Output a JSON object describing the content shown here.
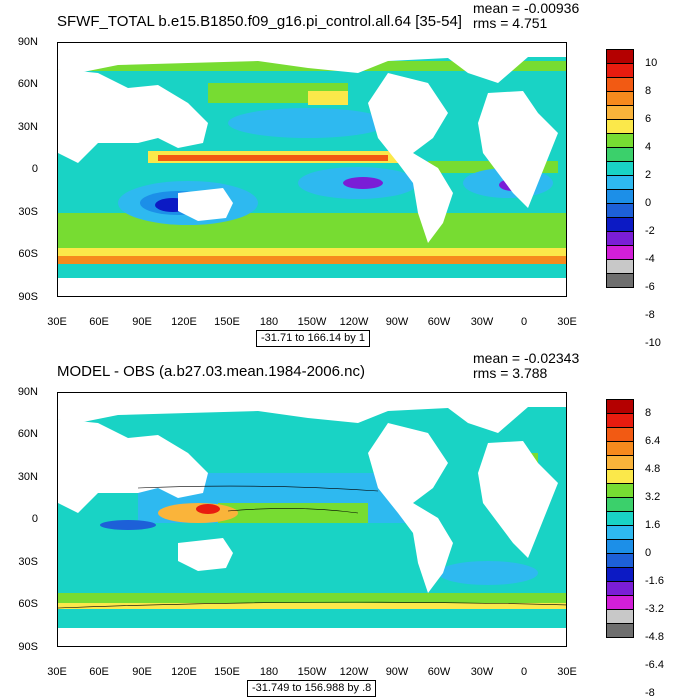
{
  "panels": [
    {
      "title": "SFWF_TOTAL b.e15.B1850.f09_g16.pi_control.all.64 [35-54]",
      "mean": "mean = -0.00936",
      "rms": "rms = 4.751",
      "range_label": "-31.71 to 166.14 by 1",
      "colorbar_labels": [
        "10",
        "8",
        "6",
        "4",
        "2",
        "0",
        "-2",
        "-4",
        "-6",
        "-8",
        "-10"
      ],
      "colors": [
        "#b40000",
        "#e81c0f",
        "#f25a13",
        "#f68a1d",
        "#fab43a",
        "#fbe84a",
        "#77dc32",
        "#3bd06b",
        "#19d3c5",
        "#2eb9f0",
        "#1c8fe8",
        "#1d60d8",
        "#0c1ac4",
        "#7a1ed6",
        "#d21fd8",
        "#c8c8c8",
        "#6e6e6e"
      ]
    },
    {
      "title": "MODEL - OBS (a.b27.03.mean.1984-2006.nc)",
      "mean": "mean = -0.02343",
      "rms": "rms = 3.788",
      "range_label": "-31.749 to 156.988 by .8",
      "colorbar_labels": [
        "8",
        "6.4",
        "4.8",
        "3.2",
        "1.6",
        "0",
        "-1.6",
        "-3.2",
        "-4.8",
        "-6.4",
        "-8"
      ],
      "colors": [
        "#b40000",
        "#e81c0f",
        "#f25a13",
        "#f68a1d",
        "#fab43a",
        "#fbe84a",
        "#77dc32",
        "#3bd06b",
        "#19d3c5",
        "#2eb9f0",
        "#1c8fe8",
        "#1d60d8",
        "#0c1ac4",
        "#7a1ed6",
        "#d21fd8",
        "#c8c8c8",
        "#6e6e6e"
      ]
    }
  ],
  "y_axis_labels": [
    "90N",
    "60N",
    "30N",
    "0",
    "30S",
    "60S",
    "90S"
  ],
  "x_axis_labels": [
    "30E",
    "60E",
    "90E",
    "120E",
    "150E",
    "180",
    "150W",
    "120W",
    "90W",
    "60W",
    "30W",
    "0",
    "30E"
  ]
}
